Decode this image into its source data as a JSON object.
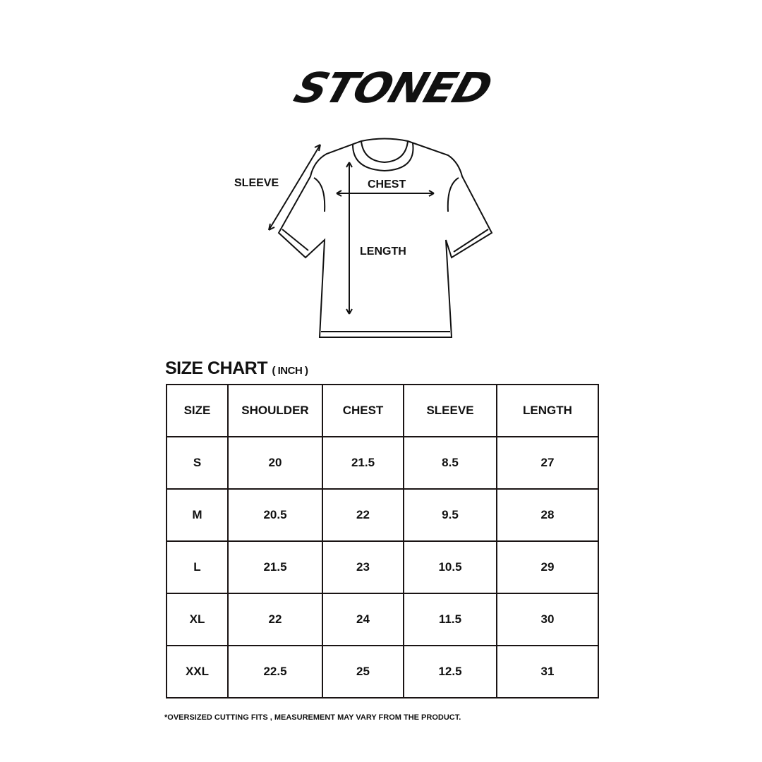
{
  "logo": {
    "text": "STONED"
  },
  "diagram": {
    "sleeve": "SLEEVE",
    "chest": "CHEST",
    "length": "LENGTH"
  },
  "title": {
    "main": "SIZE CHART",
    "unit": "( INCH )"
  },
  "table": {
    "headers": [
      "SIZE",
      "SHOULDER",
      "CHEST",
      "SLEEVE",
      "LENGTH"
    ],
    "rows": [
      [
        "S",
        "20",
        "21.5",
        "8.5",
        "27"
      ],
      [
        "M",
        "20.5",
        "22",
        "9.5",
        "28"
      ],
      [
        "L",
        "21.5",
        "23",
        "10.5",
        "29"
      ],
      [
        "XL",
        "22",
        "24",
        "11.5",
        "30"
      ],
      [
        "XXL",
        "22.5",
        "25",
        "12.5",
        "31"
      ]
    ]
  },
  "note": "*OVERSIZED CUTTING FITS , MEASUREMENT MAY VARY FROM THE PRODUCT."
}
